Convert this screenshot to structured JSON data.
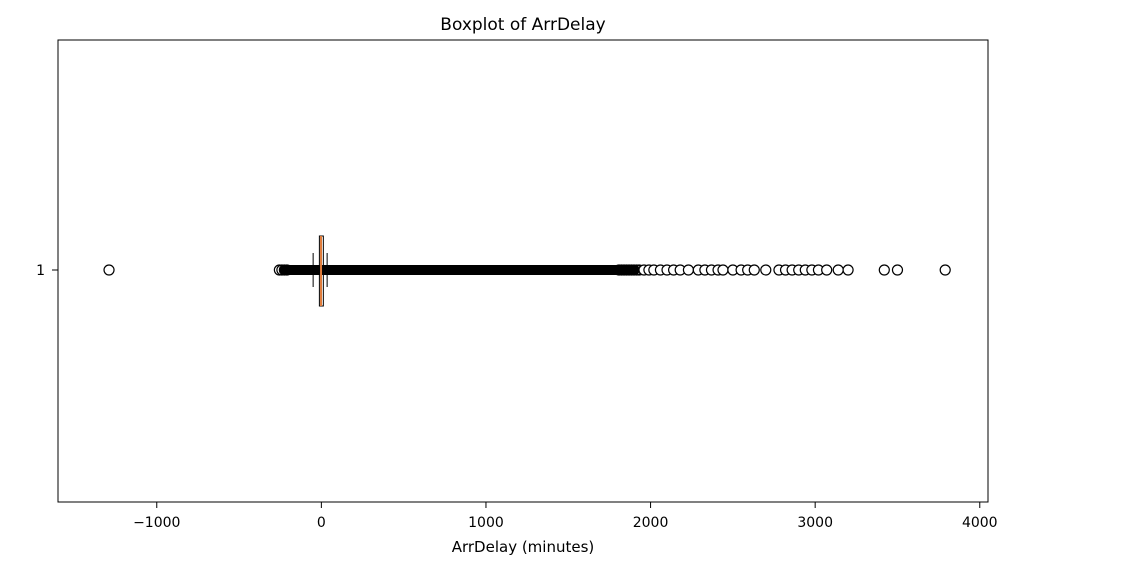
{
  "chart_data": {
    "type": "boxplot",
    "orientation": "horizontal",
    "title": "Boxplot of ArrDelay",
    "xlabel": "ArrDelay (minutes)",
    "ylabel": "",
    "xlim": [
      -1600,
      4050
    ],
    "xticks": [
      -1000,
      0,
      1000,
      2000,
      3000,
      4000
    ],
    "xtick_labels": [
      "−1000",
      "0",
      "1000",
      "2000",
      "3000",
      "4000"
    ],
    "yticks": [
      "1"
    ],
    "grid": false,
    "box": {
      "q1": -12,
      "median": -2,
      "q3": 12,
      "whisker_low": -50,
      "whisker_high": 35,
      "color": "#e07b39",
      "median_color": "#e07b39"
    },
    "outlier_range_dense": [
      -255,
      1930
    ],
    "outliers": [
      -1290,
      1960,
      1990,
      2020,
      2060,
      2100,
      2140,
      2180,
      2230,
      2290,
      2330,
      2370,
      2410,
      2440,
      2500,
      2550,
      2590,
      2630,
      2700,
      2780,
      2820,
      2860,
      2900,
      2940,
      2980,
      3020,
      3070,
      3140,
      3200,
      3420,
      3500,
      3790
    ]
  }
}
